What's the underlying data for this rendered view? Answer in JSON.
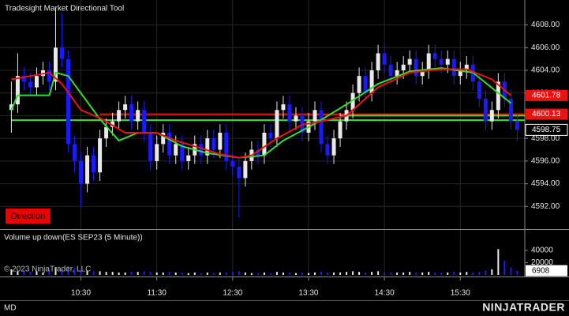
{
  "title": "Tradesight Market Directional Tool",
  "direction_label": "Direction",
  "copyright": "© 2023 NinjaTrader, LLC",
  "status": "MD",
  "logo": "NINJATRADER",
  "chart_data": {
    "type": "candlestick",
    "x": [
      575,
      580,
      585,
      590,
      595,
      600,
      605,
      610,
      615,
      620,
      625,
      630,
      635,
      640,
      645,
      650,
      655,
      660,
      665,
      670,
      675,
      680,
      685,
      690,
      695,
      700,
      705,
      710,
      715,
      720,
      725,
      730,
      735,
      740,
      745,
      750,
      755,
      760,
      765,
      770,
      775,
      780,
      785,
      790,
      795,
      800,
      805,
      810,
      815,
      820,
      825,
      830,
      835,
      840,
      845,
      850,
      855,
      860,
      865,
      870,
      875,
      880,
      885,
      890,
      895,
      900,
      905,
      910,
      915,
      920,
      925,
      930,
      935,
      940,
      945,
      950,
      955,
      960,
      965,
      970,
      975
    ],
    "open": [
      4600.5,
      4601.0,
      4603.5,
      4603.0,
      4602.5,
      4603.5,
      4604.0,
      4603.0,
      4606.0,
      4605.0,
      4597.5,
      4596.0,
      4594.0,
      4596.5,
      4595.0,
      4598.0,
      4599.0,
      4599.5,
      4600.5,
      4601.0,
      4599.5,
      4600.5,
      4598.5,
      4596.0,
      4597.5,
      4598.5,
      4596.5,
      4597.5,
      4596.0,
      4596.5,
      4597.5,
      4596.5,
      4598.0,
      4597.0,
      4598.5,
      4596.0,
      4595.5,
      4594.5,
      4596.0,
      4597.0,
      4596.5,
      4598.5,
      4598.0,
      4600.5,
      4601.0,
      4599.5,
      4600.0,
      4598.5,
      4599.5,
      4600.5,
      4597.5,
      4596.5,
      4598.0,
      4599.5,
      4600.5,
      4602.0,
      4603.5,
      4602.0,
      4604.0,
      4605.5,
      4604.5,
      4603.5,
      4604.0,
      4604.5,
      4605.0,
      4603.5,
      4604.0,
      4605.5,
      4605.0,
      4604.5,
      4605.0,
      4603.5,
      4604.0,
      4604.5,
      4603.0,
      4601.5,
      4599.5,
      4600.5,
      4603.0,
      4601.5,
      4599.5
    ],
    "high": [
      4603.0,
      4605.5,
      4604.25,
      4603.75,
      4604.25,
      4604.75,
      4604.75,
      4609.5,
      4609.0,
      4605.75,
      4598.25,
      4596.75,
      4597.25,
      4597.25,
      4598.75,
      4599.75,
      4600.25,
      4601.25,
      4601.75,
      4601.75,
      4601.25,
      4601.25,
      4599.25,
      4598.25,
      4599.25,
      4599.25,
      4598.25,
      4598.25,
      4597.25,
      4598.25,
      4598.25,
      4598.75,
      4598.75,
      4599.25,
      4599.25,
      4596.75,
      4596.25,
      4596.75,
      4597.75,
      4597.75,
      4599.25,
      4599.25,
      4601.25,
      4601.75,
      4601.75,
      4600.75,
      4600.75,
      4600.25,
      4601.25,
      4601.25,
      4598.25,
      4598.75,
      4600.25,
      4601.25,
      4602.75,
      4604.25,
      4604.25,
      4604.75,
      4606.25,
      4606.25,
      4605.25,
      4604.75,
      4605.25,
      4605.75,
      4605.75,
      4604.75,
      4606.25,
      4606.25,
      4605.75,
      4605.75,
      4605.75,
      4604.75,
      4605.25,
      4605.25,
      4603.75,
      4602.25,
      4601.25,
      4603.75,
      4603.75,
      4602.25,
      4600.25
    ],
    "low": [
      4598.5,
      4600.25,
      4602.25,
      4601.75,
      4601.75,
      4602.75,
      4602.25,
      4602.25,
      4604.25,
      4596.75,
      4595.0,
      4592.0,
      4593.25,
      4594.25,
      4594.25,
      4597.25,
      4598.25,
      4598.75,
      4599.75,
      4598.75,
      4598.75,
      4597.75,
      4595.25,
      4595.25,
      4596.75,
      4595.75,
      4595.75,
      4595.25,
      4595.25,
      4595.75,
      4595.75,
      4595.75,
      4596.25,
      4596.25,
      4595.25,
      4594.75,
      4591.0,
      4593.75,
      4595.25,
      4595.75,
      4595.75,
      4597.25,
      4597.25,
      4599.75,
      4598.75,
      4598.75,
      4597.75,
      4597.75,
      4598.75,
      4596.75,
      4595.75,
      4595.75,
      4597.25,
      4598.75,
      4599.75,
      4601.25,
      4601.25,
      4601.25,
      4603.25,
      4603.75,
      4602.75,
      4602.75,
      4603.25,
      4603.75,
      4602.75,
      4602.75,
      4603.25,
      4604.25,
      4603.75,
      4603.75,
      4602.75,
      4602.75,
      4603.25,
      4602.25,
      4600.75,
      4598.75,
      4598.75,
      4599.75,
      4600.75,
      4598.75,
      4597.75
    ],
    "close": [
      4601.0,
      4603.5,
      4603.0,
      4602.5,
      4603.5,
      4604.0,
      4603.0,
      4606.0,
      4605.0,
      4597.5,
      4596.0,
      4594.0,
      4596.5,
      4595.0,
      4598.0,
      4599.0,
      4599.5,
      4600.5,
      4601.0,
      4599.5,
      4600.5,
      4598.5,
      4596.0,
      4597.5,
      4598.5,
      4596.5,
      4597.5,
      4596.0,
      4596.5,
      4597.5,
      4596.5,
      4598.0,
      4597.0,
      4598.5,
      4596.0,
      4595.5,
      4594.5,
      4596.0,
      4597.0,
      4596.5,
      4598.5,
      4598.0,
      4600.5,
      4601.0,
      4599.5,
      4600.0,
      4598.5,
      4599.5,
      4600.5,
      4597.5,
      4596.5,
      4598.0,
      4599.5,
      4600.5,
      4602.0,
      4603.5,
      4602.0,
      4604.0,
      4605.5,
      4604.5,
      4603.5,
      4604.0,
      4604.5,
      4605.0,
      4603.5,
      4604.0,
      4605.5,
      4605.0,
      4604.5,
      4605.0,
      4603.5,
      4604.0,
      4604.5,
      4603.0,
      4601.5,
      4599.5,
      4600.5,
      4603.0,
      4601.5,
      4599.5,
      4598.75
    ],
    "up_color": "#e8e8e8",
    "down_color": "#1a1aff",
    "xlim": [
      566,
      981
    ],
    "xticks": [
      {
        "value": 630,
        "label": "10:30"
      },
      {
        "value": 690,
        "label": "11:30"
      },
      {
        "value": 750,
        "label": "12:30"
      },
      {
        "value": 810,
        "label": "13:30"
      },
      {
        "value": 870,
        "label": "14:30"
      },
      {
        "value": 930,
        "label": "15:30"
      }
    ],
    "ylim": [
      4590,
      4610.2
    ],
    "yticks": [
      {
        "value": 4592,
        "label": "4592.00"
      },
      {
        "value": 4594,
        "label": "4594.00"
      },
      {
        "value": 4596,
        "label": "4596.00"
      },
      {
        "value": 4598,
        "label": "4598.00"
      },
      {
        "value": 4600,
        "label": "4600.00"
      },
      {
        "value": 4602,
        "label": "4602.00"
      },
      {
        "value": 4604,
        "label": "4604.00"
      },
      {
        "value": 4606,
        "label": "4606.00"
      },
      {
        "value": 4608,
        "label": "4608.00"
      }
    ],
    "grid": true,
    "lines": [
      {
        "color": "#33dd33",
        "x": [
          575,
          580,
          605,
          610,
          620,
          645,
          660,
          675,
          690,
          710,
          730,
          755,
          775,
          790,
          815,
          840,
          865,
          890,
          915,
          940,
          970
        ],
        "values": [
          4600.5,
          4601.8,
          4601.8,
          4603.8,
          4603.5,
          4599.7,
          4597.8,
          4598.5,
          4598.5,
          4597.3,
          4596.7,
          4596.3,
          4596.5,
          4597.8,
          4599.3,
          4601.0,
          4602.8,
          4603.9,
          4604.2,
          4603.8,
          4601.1
        ]
      },
      {
        "color": "#ee1111",
        "x": [
          575,
          590,
          605,
          615,
          630,
          645,
          665,
          690,
          705,
          720,
          740,
          755,
          765,
          785,
          805,
          820,
          840,
          865,
          890,
          915,
          935,
          955,
          970
        ],
        "values": [
          4603.2,
          4603.5,
          4603.8,
          4602.8,
          4600.5,
          4599.8,
          4598.5,
          4598.5,
          4597.8,
          4597.3,
          4596.6,
          4596.3,
          4596.5,
          4598.0,
          4599.2,
          4599.5,
          4600.0,
          4602.5,
          4603.8,
          4604.1,
          4604.1,
          4603.2,
          4601.78
        ]
      }
    ],
    "levels": [
      {
        "value": 4600.13,
        "color": "#ee1111",
        "start": 645
      },
      {
        "value": 4599.6,
        "color": "#ee1111",
        "start": 575
      },
      {
        "value": 4599.6,
        "color": "#33dd33",
        "start": 575
      },
      {
        "value": 4600.0,
        "color": "#33dd33",
        "start": 835
      }
    ],
    "volume": {
      "title": "Volume up down(ES SEP23 (5 Minute))",
      "values": [
        9000,
        6000,
        7000,
        5000,
        6000,
        4000,
        8000,
        12000,
        9000,
        14000,
        11000,
        8000,
        7000,
        6000,
        6000,
        5000,
        5000,
        4000,
        4000,
        5000,
        5000,
        6000,
        5000,
        4000,
        4000,
        5000,
        4000,
        4000,
        3000,
        4000,
        3000,
        4000,
        3000,
        4000,
        4000,
        5000,
        6000,
        4000,
        3000,
        3000,
        4000,
        3000,
        5000,
        4000,
        4000,
        3000,
        4000,
        3000,
        4000,
        5000,
        4000,
        4000,
        4000,
        5000,
        6000,
        5000,
        4000,
        5000,
        6000,
        4000,
        4000,
        4000,
        4000,
        5000,
        4000,
        4000,
        5000,
        4000,
        4000,
        4000,
        5000,
        4000,
        5000,
        4000,
        5000,
        7000,
        9000,
        42000,
        23000,
        12000,
        6908
      ],
      "ylim": [
        0,
        72000
      ],
      "yticks": [
        20000,
        40000
      ]
    }
  }
}
